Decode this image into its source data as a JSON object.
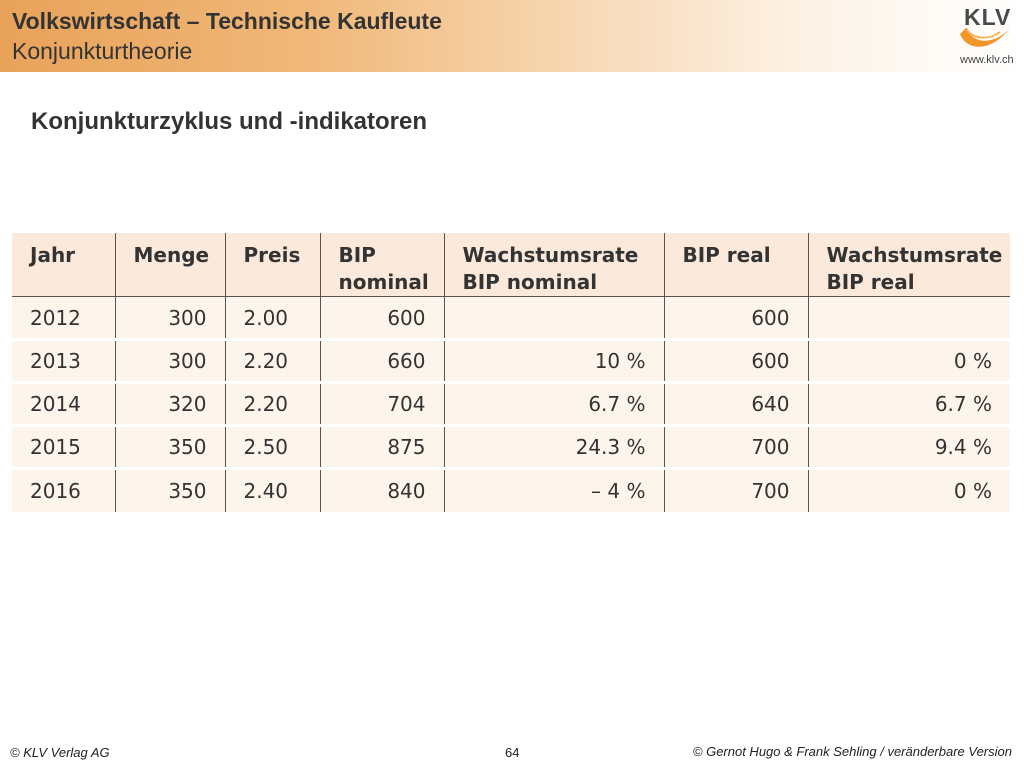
{
  "header": {
    "title": "Volkswirtschaft – Technische Kaufleute",
    "subtitle": "Konjunkturtheorie"
  },
  "logo": {
    "text": "KLV",
    "url": "www.klv.ch"
  },
  "section_title": "Konjunkturzyklus und -indikatoren",
  "table": {
    "headers": [
      [
        "Jahr",
        ""
      ],
      [
        "Menge",
        ""
      ],
      [
        "Preis",
        ""
      ],
      [
        "BIP",
        "nominal"
      ],
      [
        "Wachstumsrate",
        "BIP nominal"
      ],
      [
        "BIP real",
        ""
      ],
      [
        "Wachstumsrate",
        "BIP real"
      ]
    ],
    "rows": [
      [
        "2012",
        "300",
        "2.00",
        "600",
        "",
        "600",
        ""
      ],
      [
        "2013",
        "300",
        "2.20",
        "660",
        "10 %",
        "600",
        "0 %"
      ],
      [
        "2014",
        "320",
        "2.20",
        "704",
        "6.7 %",
        "640",
        "6.7 %"
      ],
      [
        "2015",
        "350",
        "2.50",
        "875",
        "24.3 %",
        "700",
        "9.4 %"
      ],
      [
        "2016",
        "350",
        "2.40",
        "840",
        "– 4 %",
        "700",
        "0 %"
      ]
    ]
  },
  "footer": {
    "left": "© KLV Verlag AG",
    "page": "64",
    "right": "© Gernot Hugo & Frank Sehling / veränderbare Version"
  }
}
